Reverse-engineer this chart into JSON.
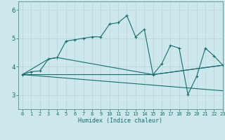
{
  "title": "",
  "xlabel": "Humidex (Indice chaleur)",
  "ylabel": "",
  "background_color": "#cce8ec",
  "line_color": "#1a6b6b",
  "grid_color": "#b8d8dc",
  "xlim": [
    -0.5,
    23
  ],
  "ylim": [
    2.5,
    6.3
  ],
  "xticks": [
    0,
    1,
    2,
    3,
    4,
    5,
    6,
    7,
    8,
    9,
    10,
    11,
    12,
    13,
    14,
    15,
    16,
    17,
    18,
    19,
    20,
    21,
    22,
    23
  ],
  "yticks": [
    3,
    4,
    5,
    6
  ],
  "series": [
    {
      "x": [
        0,
        1,
        2,
        3,
        4,
        5,
        6,
        7,
        8,
        9,
        10,
        11,
        12,
        13,
        14,
        15,
        16,
        17,
        18,
        19,
        20,
        21,
        22,
        23
      ],
      "y": [
        3.72,
        3.82,
        3.85,
        4.27,
        4.32,
        4.9,
        4.95,
        5.0,
        5.05,
        5.05,
        5.5,
        5.55,
        5.8,
        5.05,
        5.32,
        3.72,
        4.1,
        4.75,
        4.65,
        3.02,
        3.65,
        4.65,
        4.38,
        4.05
      ],
      "marker": "+"
    },
    {
      "x": [
        0,
        3,
        4,
        15,
        23
      ],
      "y": [
        3.72,
        4.27,
        4.32,
        3.72,
        4.05
      ],
      "marker": null
    },
    {
      "x": [
        0,
        15,
        23
      ],
      "y": [
        3.72,
        3.72,
        4.05
      ],
      "marker": null
    },
    {
      "x": [
        0,
        23
      ],
      "y": [
        3.72,
        3.15
      ],
      "marker": null
    }
  ]
}
